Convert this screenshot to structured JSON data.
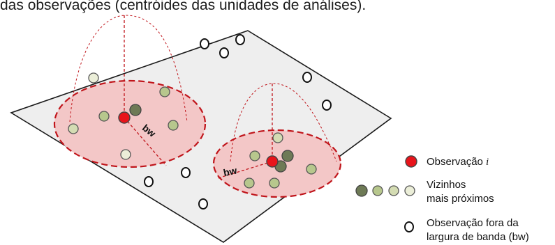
{
  "header": {
    "caption": "das observações (centróides das unidades de análises)."
  },
  "diagram": {
    "bandwidth_label": "bw",
    "colors": {
      "plane_fill": "#eeeeee",
      "plane_stroke": "#1a1a1a",
      "kernel_fill": "#f3c7c7",
      "kernel_stroke": "#c0151b",
      "center_fill": "#e8141b",
      "neighbor_dark": "#6e7a56",
      "neighbor_mid": "#b7c78d",
      "neighbor_light": "#d4dcb3",
      "neighbor_lightest": "#ebeed8",
      "outside_fill": "#ffffff"
    }
  },
  "legend": {
    "observation_label": "Observação ",
    "observation_symbol": "i",
    "neighbors_line1": "Vizinhos",
    "neighbors_line2": "mais próximos",
    "outside_line1": "Observação fora da",
    "outside_line2": "largura de banda (bw)"
  }
}
